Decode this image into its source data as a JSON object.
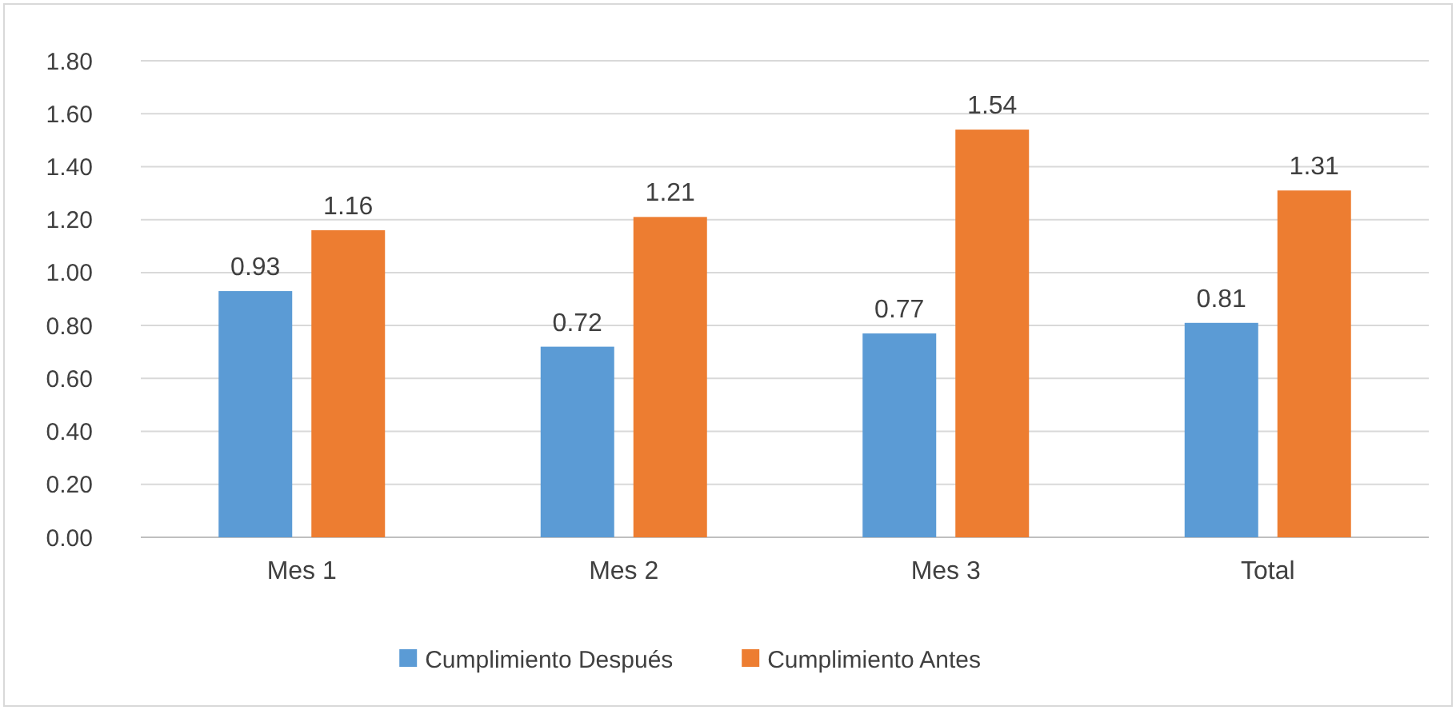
{
  "chart_data": {
    "type": "bar",
    "categories": [
      "Mes 1",
      "Mes 2",
      "Mes 3",
      "Total"
    ],
    "series": [
      {
        "name": "Cumplimiento Después",
        "color": "#5b9bd5",
        "values": [
          0.93,
          0.72,
          0.77,
          0.81
        ]
      },
      {
        "name": "Cumplimiento Antes",
        "color": "#ed7d31",
        "values": [
          1.16,
          1.21,
          1.54,
          1.31
        ]
      }
    ],
    "ylim": [
      0,
      1.8
    ],
    "yticks": [
      {
        "value": 0,
        "label": "0.00"
      },
      {
        "value": 0.2,
        "label": "0.20"
      },
      {
        "value": 0.4,
        "label": "0.40"
      },
      {
        "value": 0.6,
        "label": "0.60"
      },
      {
        "value": 0.8,
        "label": "0.80"
      },
      {
        "value": 1,
        "label": "1.00"
      },
      {
        "value": 1.2,
        "label": "1.20"
      },
      {
        "value": 1.4,
        "label": "1.40"
      },
      {
        "value": 1.6,
        "label": "1.60"
      },
      {
        "value": 1.8,
        "label": "1.80"
      }
    ],
    "grid": "y",
    "legend": "bottom",
    "data_labels": true
  }
}
